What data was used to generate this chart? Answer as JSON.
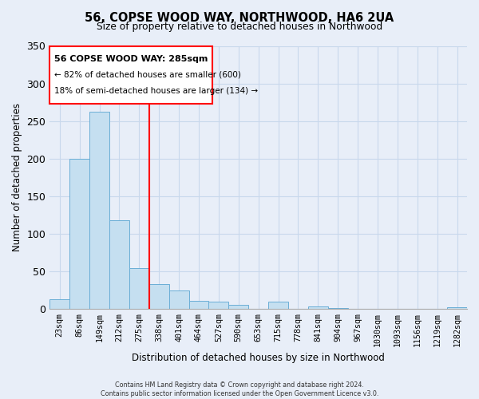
{
  "title": "56, COPSE WOOD WAY, NORTHWOOD, HA6 2UA",
  "subtitle": "Size of property relative to detached houses in Northwood",
  "xlabel": "Distribution of detached houses by size in Northwood",
  "ylabel": "Number of detached properties",
  "bar_labels": [
    "23sqm",
    "86sqm",
    "149sqm",
    "212sqm",
    "275sqm",
    "338sqm",
    "401sqm",
    "464sqm",
    "527sqm",
    "590sqm",
    "653sqm",
    "715sqm",
    "778sqm",
    "841sqm",
    "904sqm",
    "967sqm",
    "1030sqm",
    "1093sqm",
    "1156sqm",
    "1219sqm",
    "1282sqm"
  ],
  "bar_values": [
    13,
    200,
    262,
    118,
    54,
    33,
    24,
    10,
    9,
    5,
    0,
    9,
    0,
    3,
    1,
    0,
    0,
    0,
    0,
    0,
    2
  ],
  "bar_color": "#c5dff0",
  "bar_edge_color": "#6aaed6",
  "vline_x": 4.5,
  "vline_color": "red",
  "annotation_title": "56 COPSE WOOD WAY: 285sqm",
  "annotation_line1": "← 82% of detached houses are smaller (600)",
  "annotation_line2": "18% of semi-detached houses are larger (134) →",
  "ylim": [
    0,
    350
  ],
  "footer1": "Contains HM Land Registry data © Crown copyright and database right 2024.",
  "footer2": "Contains public sector information licensed under the Open Government Licence v3.0.",
  "background_color": "#e8eef8",
  "grid_color": "#c8d8ec"
}
